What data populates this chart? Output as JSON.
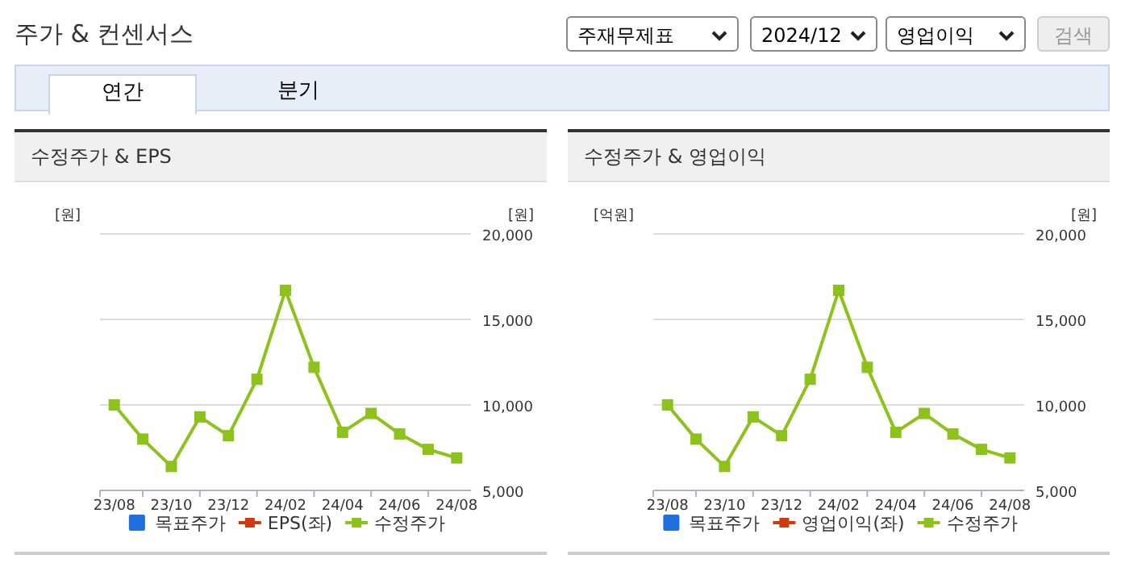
{
  "chart_data": [
    {
      "type": "line",
      "title": "수정주가 & EPS",
      "annotations": [
        "주가 & 컨센서스",
        "주재무제표",
        "2024/12",
        "영업이익",
        "검색",
        "연간",
        "분기"
      ],
      "categories": [
        "23/08",
        null,
        "23/10",
        null,
        "23/12",
        null,
        "24/02",
        null,
        "24/04",
        null,
        "24/06",
        null,
        "24/08"
      ],
      "ylabel": "[원]",
      "y2label": "[원]",
      "y2lim": [
        5000,
        20000
      ],
      "y2ticks": [
        {
          "value": 5000,
          "label": "5,000"
        },
        {
          "value": 10000,
          "label": "10,000"
        },
        {
          "value": 15000,
          "label": "15,000"
        },
        {
          "value": 20000,
          "label": "20,000"
        }
      ],
      "grid": "y",
      "legend": "bottom",
      "marker": "square",
      "series": [
        {
          "name": "목표주가",
          "type": "bar",
          "color": "#1f6fdf",
          "values": [
            null,
            null,
            null,
            null,
            null,
            null,
            null,
            null,
            null,
            null,
            null,
            null,
            null
          ]
        },
        {
          "name": "EPS(좌)",
          "type": "line",
          "color": "#d03a10",
          "values": [
            null,
            null,
            null,
            null,
            null,
            null,
            null,
            null,
            null,
            null,
            null,
            null,
            null
          ]
        },
        {
          "name": "수정주가",
          "axis": "y2",
          "color": "#8cc21a",
          "values": [
            10000,
            8000,
            6400,
            9300,
            8200,
            11500,
            16700,
            12200,
            8400,
            9500,
            8300,
            7400,
            6900
          ]
        }
      ]
    },
    {
      "type": "line",
      "title": "수정주가 & 영업이익",
      "categories": [
        "23/08",
        null,
        "23/10",
        null,
        "23/12",
        null,
        "24/02",
        null,
        "24/04",
        null,
        "24/06",
        null,
        "24/08"
      ],
      "ylabel": "[억원]",
      "y2label": "[원]",
      "y2lim": [
        5000,
        20000
      ],
      "y2ticks": [
        {
          "value": 5000,
          "label": "5,000"
        },
        {
          "value": 10000,
          "label": "10,000"
        },
        {
          "value": 15000,
          "label": "15,000"
        },
        {
          "value": 20000,
          "label": "20,000"
        }
      ],
      "grid": "y",
      "legend": "bottom",
      "marker": "square",
      "series": [
        {
          "name": "목표주가",
          "type": "bar",
          "color": "#1f6fdf",
          "values": [
            null,
            null,
            null,
            null,
            null,
            null,
            null,
            null,
            null,
            null,
            null,
            null,
            null
          ]
        },
        {
          "name": "영업이익(좌)",
          "type": "line",
          "color": "#d03a10",
          "values": [
            null,
            null,
            null,
            null,
            null,
            null,
            null,
            null,
            null,
            null,
            null,
            null,
            null
          ]
        },
        {
          "name": "수정주가",
          "axis": "y2",
          "color": "#8cc21a",
          "values": [
            10000,
            8000,
            6400,
            9300,
            8200,
            11500,
            16700,
            12200,
            8400,
            9500,
            8300,
            7400,
            6900
          ]
        }
      ]
    }
  ]
}
